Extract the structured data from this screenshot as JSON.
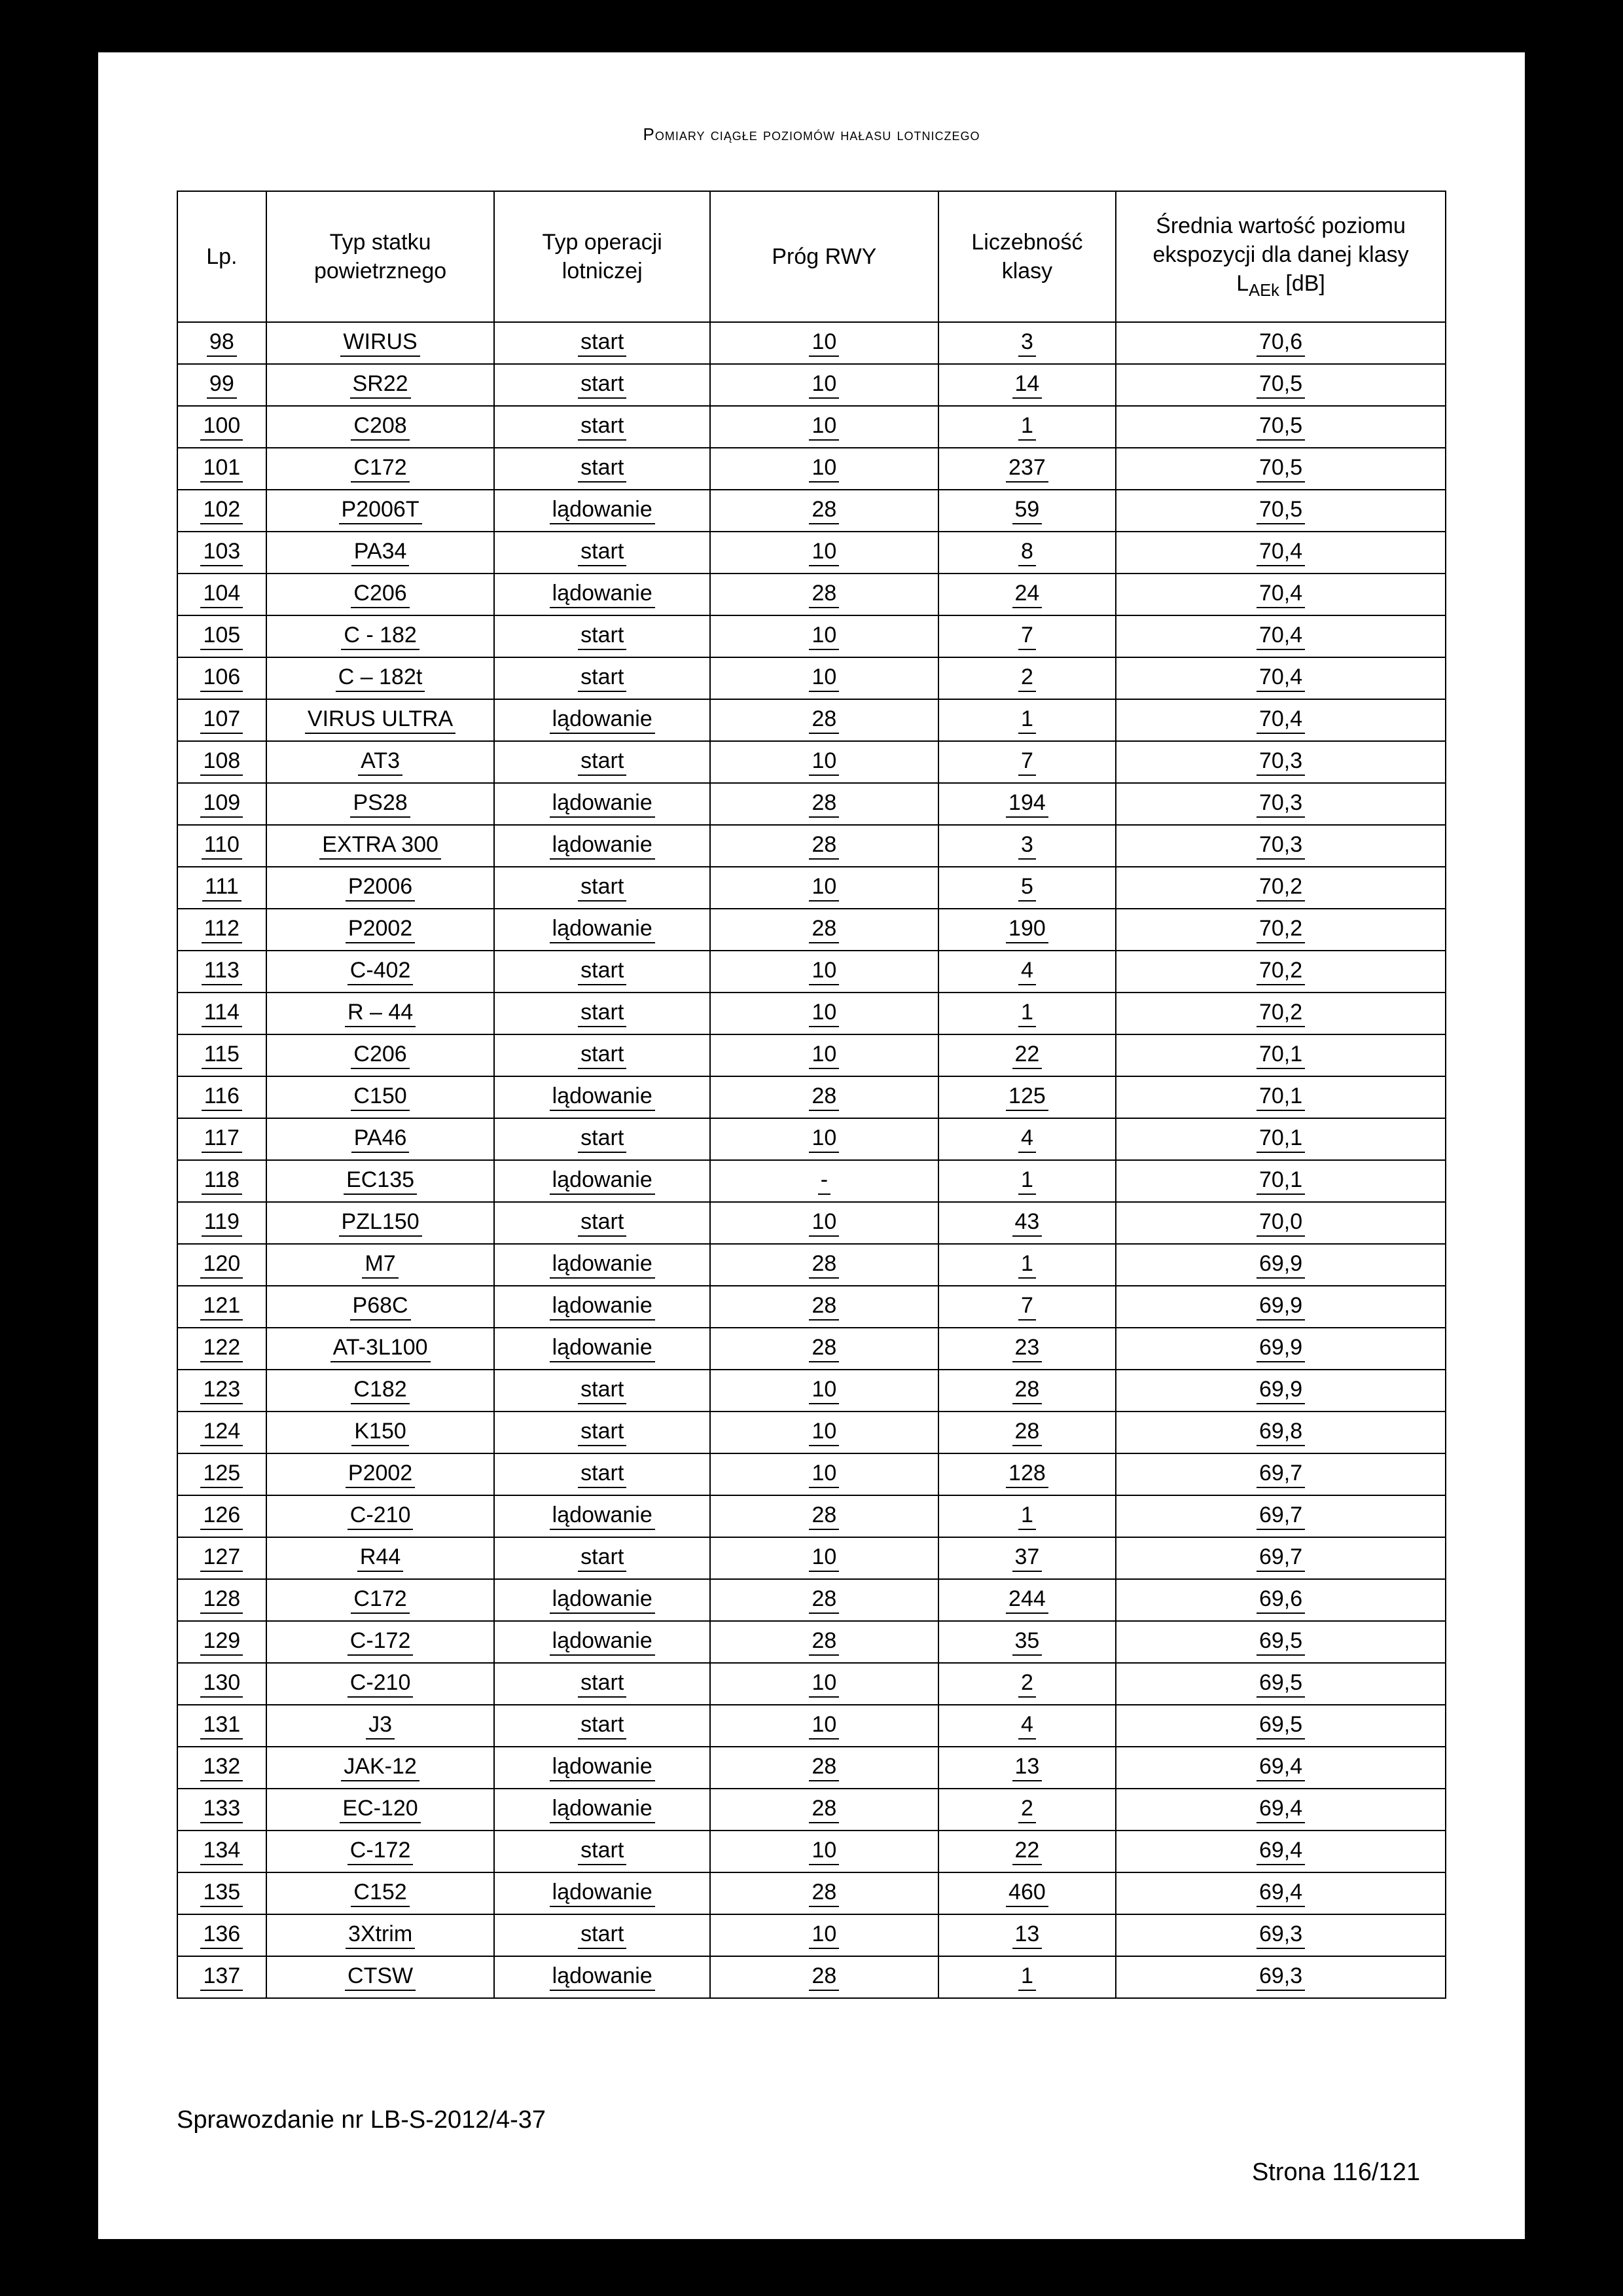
{
  "page": {
    "header_title": "Pomiary ciągłe poziomów hałasu lotniczego",
    "footer_left": "Sprawozdanie nr LB-S-2012/4-37",
    "footer_right": "Strona 116/121"
  },
  "table": {
    "columns": {
      "lp": "Lp.",
      "typ_line1": "Typ statku",
      "typ_line2": "powietrznego",
      "op_line1": "Typ operacji",
      "op_line2": "lotniczej",
      "rwy": "Próg RWY",
      "licz_line1": "Liczebność",
      "licz_line2": "klasy",
      "sred_line1": "Średnia wartość poziomu",
      "sred_line2": "ekspozycji dla danej klasy",
      "sred_line3_prefix": "L",
      "sred_line3_sub": "AEk",
      "sred_line3_suffix": " [dB]"
    },
    "rows": [
      {
        "lp": "98",
        "typ": "WIRUS",
        "op": "start",
        "rwy": "10",
        "licz": "3",
        "sred": "70,6"
      },
      {
        "lp": "99",
        "typ": "SR22",
        "op": "start",
        "rwy": "10",
        "licz": "14",
        "sred": "70,5"
      },
      {
        "lp": "100",
        "typ": "C208",
        "op": "start",
        "rwy": "10",
        "licz": "1",
        "sred": "70,5"
      },
      {
        "lp": "101",
        "typ": "C172",
        "op": "start",
        "rwy": "10",
        "licz": "237",
        "sred": "70,5"
      },
      {
        "lp": "102",
        "typ": "P2006T",
        "op": "lądowanie",
        "rwy": "28",
        "licz": "59",
        "sred": "70,5"
      },
      {
        "lp": "103",
        "typ": "PA34",
        "op": "start",
        "rwy": "10",
        "licz": "8",
        "sred": "70,4"
      },
      {
        "lp": "104",
        "typ": "C206",
        "op": "lądowanie",
        "rwy": "28",
        "licz": "24",
        "sred": "70,4"
      },
      {
        "lp": "105",
        "typ": "C - 182",
        "op": "start",
        "rwy": "10",
        "licz": "7",
        "sred": "70,4"
      },
      {
        "lp": "106",
        "typ": "C – 182t",
        "op": "start",
        "rwy": "10",
        "licz": "2",
        "sred": "70,4"
      },
      {
        "lp": "107",
        "typ": "VIRUS ULTRA",
        "op": "lądowanie",
        "rwy": "28",
        "licz": "1",
        "sred": "70,4"
      },
      {
        "lp": "108",
        "typ": "AT3",
        "op": "start",
        "rwy": "10",
        "licz": "7",
        "sred": "70,3"
      },
      {
        "lp": "109",
        "typ": "PS28",
        "op": "lądowanie",
        "rwy": "28",
        "licz": "194",
        "sred": "70,3"
      },
      {
        "lp": "110",
        "typ": "EXTRA 300",
        "op": "lądowanie",
        "rwy": "28",
        "licz": "3",
        "sred": "70,3"
      },
      {
        "lp": "111",
        "typ": "P2006",
        "op": "start",
        "rwy": "10",
        "licz": "5",
        "sred": "70,2"
      },
      {
        "lp": "112",
        "typ": "P2002",
        "op": "lądowanie",
        "rwy": "28",
        "licz": "190",
        "sred": "70,2"
      },
      {
        "lp": "113",
        "typ": "C-402",
        "op": "start",
        "rwy": "10",
        "licz": "4",
        "sred": "70,2"
      },
      {
        "lp": "114",
        "typ": "R – 44",
        "op": "start",
        "rwy": "10",
        "licz": "1",
        "sred": "70,2"
      },
      {
        "lp": "115",
        "typ": "C206",
        "op": "start",
        "rwy": "10",
        "licz": "22",
        "sred": "70,1"
      },
      {
        "lp": "116",
        "typ": "C150",
        "op": "lądowanie",
        "rwy": "28",
        "licz": "125",
        "sred": "70,1"
      },
      {
        "lp": "117",
        "typ": "PA46",
        "op": "start",
        "rwy": "10",
        "licz": "4",
        "sred": "70,1"
      },
      {
        "lp": "118",
        "typ": "EC135",
        "op": "lądowanie",
        "rwy": "-",
        "licz": "1",
        "sred": "70,1"
      },
      {
        "lp": "119",
        "typ": "PZL150",
        "op": "start",
        "rwy": "10",
        "licz": "43",
        "sred": "70,0"
      },
      {
        "lp": "120",
        "typ": "M7",
        "op": "lądowanie",
        "rwy": "28",
        "licz": "1",
        "sred": "69,9"
      },
      {
        "lp": "121",
        "typ": "P68C",
        "op": "lądowanie",
        "rwy": "28",
        "licz": "7",
        "sred": "69,9"
      },
      {
        "lp": "122",
        "typ": "AT-3L100",
        "op": "lądowanie",
        "rwy": "28",
        "licz": "23",
        "sred": "69,9"
      },
      {
        "lp": "123",
        "typ": "C182",
        "op": "start",
        "rwy": "10",
        "licz": "28",
        "sred": "69,9"
      },
      {
        "lp": "124",
        "typ": "K150",
        "op": "start",
        "rwy": "10",
        "licz": "28",
        "sred": "69,8"
      },
      {
        "lp": "125",
        "typ": "P2002",
        "op": "start",
        "rwy": "10",
        "licz": "128",
        "sred": "69,7"
      },
      {
        "lp": "126",
        "typ": "C-210",
        "op": "lądowanie",
        "rwy": "28",
        "licz": "1",
        "sred": "69,7"
      },
      {
        "lp": "127",
        "typ": "R44",
        "op": "start",
        "rwy": "10",
        "licz": "37",
        "sred": "69,7"
      },
      {
        "lp": "128",
        "typ": "C172",
        "op": "lądowanie",
        "rwy": "28",
        "licz": "244",
        "sred": "69,6"
      },
      {
        "lp": "129",
        "typ": "C-172",
        "op": "lądowanie",
        "rwy": "28",
        "licz": "35",
        "sred": "69,5"
      },
      {
        "lp": "130",
        "typ": "C-210",
        "op": "start",
        "rwy": "10",
        "licz": "2",
        "sred": "69,5"
      },
      {
        "lp": "131",
        "typ": "J3",
        "op": "start",
        "rwy": "10",
        "licz": "4",
        "sred": "69,5"
      },
      {
        "lp": "132",
        "typ": "JAK-12",
        "op": "lądowanie",
        "rwy": "28",
        "licz": "13",
        "sred": "69,4"
      },
      {
        "lp": "133",
        "typ": "EC-120",
        "op": "lądowanie",
        "rwy": "28",
        "licz": "2",
        "sred": "69,4"
      },
      {
        "lp": "134",
        "typ": "C-172",
        "op": "start",
        "rwy": "10",
        "licz": "22",
        "sred": "69,4"
      },
      {
        "lp": "135",
        "typ": "C152",
        "op": "lądowanie",
        "rwy": "28",
        "licz": "460",
        "sred": "69,4"
      },
      {
        "lp": "136",
        "typ": "3Xtrim",
        "op": "start",
        "rwy": "10",
        "licz": "13",
        "sred": "69,3"
      },
      {
        "lp": "137",
        "typ": "CTSW",
        "op": "lądowanie",
        "rwy": "28",
        "licz": "1",
        "sred": "69,3"
      }
    ]
  }
}
